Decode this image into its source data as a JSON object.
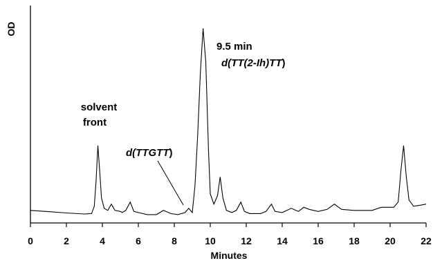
{
  "chart_data": {
    "type": "line",
    "xlabel": "Minutes",
    "ylabel": "OD",
    "xlim": [
      0,
      22
    ],
    "ylim": [
      0,
      1
    ],
    "grid": false,
    "x_ticks": [
      0,
      2,
      4,
      6,
      8,
      10,
      12,
      14,
      16,
      18,
      20,
      22
    ],
    "x_tick_labels": [
      "0",
      "2",
      "4",
      "6",
      "8",
      "10",
      "12",
      "14",
      "16",
      "18",
      "20",
      "22"
    ],
    "annotations": {
      "solvent_front": {
        "line1": "solvent",
        "line2": "front"
      },
      "main_peak": {
        "time": "9.5 min",
        "prefix": "d(",
        "name": "TT(2-Ih)TT",
        "suffix": ")"
      },
      "minor_peak": {
        "prefix": "d(",
        "name": "TTGTT",
        "suffix": ")"
      }
    },
    "series": [
      {
        "values": [
          [
            0.0,
            0.06
          ],
          [
            1.0,
            0.054
          ],
          [
            2.0,
            0.048
          ],
          [
            3.0,
            0.043
          ],
          [
            3.4,
            0.045
          ],
          [
            3.55,
            0.08
          ],
          [
            3.65,
            0.2
          ],
          [
            3.75,
            0.37
          ],
          [
            3.85,
            0.25
          ],
          [
            3.95,
            0.12
          ],
          [
            4.1,
            0.07
          ],
          [
            4.3,
            0.06
          ],
          [
            4.5,
            0.09
          ],
          [
            4.7,
            0.06
          ],
          [
            5.0,
            0.055
          ],
          [
            5.1,
            0.05
          ],
          [
            5.3,
            0.06
          ],
          [
            5.55,
            0.1
          ],
          [
            5.75,
            0.055
          ],
          [
            6.0,
            0.05
          ],
          [
            6.5,
            0.04
          ],
          [
            7.0,
            0.04
          ],
          [
            7.4,
            0.06
          ],
          [
            7.8,
            0.045
          ],
          [
            8.2,
            0.04
          ],
          [
            8.6,
            0.05
          ],
          [
            8.8,
            0.07
          ],
          [
            9.0,
            0.05
          ],
          [
            9.15,
            0.18
          ],
          [
            9.3,
            0.42
          ],
          [
            9.45,
            0.72
          ],
          [
            9.6,
            0.93
          ],
          [
            9.75,
            0.77
          ],
          [
            9.9,
            0.35
          ],
          [
            10.0,
            0.14
          ],
          [
            10.2,
            0.09
          ],
          [
            10.4,
            0.13
          ],
          [
            10.55,
            0.22
          ],
          [
            10.7,
            0.12
          ],
          [
            10.9,
            0.06
          ],
          [
            11.2,
            0.05
          ],
          [
            11.45,
            0.06
          ],
          [
            11.7,
            0.1
          ],
          [
            11.9,
            0.055
          ],
          [
            12.2,
            0.045
          ],
          [
            12.8,
            0.045
          ],
          [
            13.1,
            0.055
          ],
          [
            13.4,
            0.09
          ],
          [
            13.6,
            0.055
          ],
          [
            14.0,
            0.05
          ],
          [
            14.5,
            0.07
          ],
          [
            14.9,
            0.055
          ],
          [
            15.2,
            0.075
          ],
          [
            15.5,
            0.065
          ],
          [
            16.0,
            0.055
          ],
          [
            16.5,
            0.065
          ],
          [
            16.9,
            0.09
          ],
          [
            17.3,
            0.065
          ],
          [
            18.0,
            0.06
          ],
          [
            19.0,
            0.06
          ],
          [
            19.5,
            0.075
          ],
          [
            20.2,
            0.075
          ],
          [
            20.45,
            0.1
          ],
          [
            20.6,
            0.25
          ],
          [
            20.75,
            0.37
          ],
          [
            20.9,
            0.22
          ],
          [
            21.05,
            0.11
          ],
          [
            21.3,
            0.08
          ],
          [
            21.7,
            0.085
          ],
          [
            22.0,
            0.09
          ]
        ]
      }
    ]
  }
}
